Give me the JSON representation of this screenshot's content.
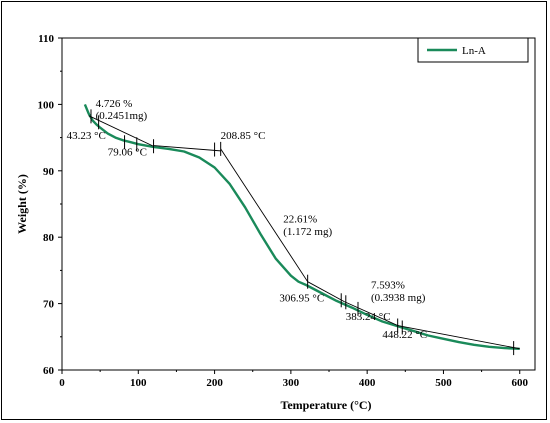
{
  "chart_data": {
    "type": "line",
    "title": "",
    "xlabel": "Temperature (°C)",
    "ylabel": "Weight (%)",
    "xlim": [
      0,
      620
    ],
    "ylim": [
      60,
      110
    ],
    "xticks": [
      0,
      100,
      200,
      300,
      400,
      500,
      600
    ],
    "yticks": [
      60,
      70,
      80,
      90,
      100,
      110
    ],
    "grid": false,
    "legend": {
      "position": "top-right"
    },
    "series": [
      {
        "name": "Ln-A",
        "color": "#1a8a5a",
        "x": [
          30,
          35,
          40,
          45,
          50,
          60,
          70,
          80,
          90,
          100,
          120,
          140,
          160,
          180,
          200,
          220,
          240,
          260,
          280,
          300,
          310,
          320,
          340,
          360,
          380,
          400,
          420,
          440,
          460,
          480,
          500,
          520,
          540,
          560,
          580,
          600
        ],
        "y": [
          100.0,
          98.6,
          97.6,
          97.0,
          96.5,
          95.6,
          95.0,
          94.6,
          94.3,
          94.0,
          93.6,
          93.3,
          92.9,
          92.0,
          90.5,
          88.0,
          84.5,
          80.5,
          76.8,
          74.2,
          73.3,
          72.8,
          71.6,
          70.4,
          69.4,
          68.3,
          67.3,
          66.6,
          65.9,
          65.2,
          64.7,
          64.2,
          63.8,
          63.5,
          63.3,
          63.2
        ]
      }
    ],
    "annotations": [
      {
        "text": "4.726 %",
        "x": 44,
        "y": 99.6
      },
      {
        "text": "(0.2451mg)",
        "x": 44,
        "y": 97.8
      },
      {
        "text": "43.23 °C",
        "x": 6,
        "y": 94.8
      },
      {
        "text": "79.06 °C",
        "x": 60,
        "y": 92.3
      },
      {
        "text": "208.85 °C",
        "x": 208,
        "y": 94.8
      },
      {
        "text": "22.61%",
        "x": 290,
        "y": 82.2
      },
      {
        "text": "(1.172 mg)",
        "x": 290,
        "y": 80.3
      },
      {
        "text": "306.95 °C",
        "x": 285,
        "y": 70.3
      },
      {
        "text": "7.593%",
        "x": 405,
        "y": 72.3
      },
      {
        "text": "(0.3938 mg)",
        "x": 405,
        "y": 70.4
      },
      {
        "text": "383.24 °C",
        "x": 372,
        "y": 67.5
      },
      {
        "text": "448.22 °C",
        "x": 420,
        "y": 64.8
      }
    ],
    "tangent_lines": [
      {
        "x1": 35,
        "y1": 98.3,
        "x2": 120,
        "y2": 93.7
      },
      {
        "x1": 120,
        "y1": 93.8,
        "x2": 208,
        "y2": 93.0
      },
      {
        "x1": 208,
        "y1": 93.3,
        "x2": 322,
        "y2": 73.3
      },
      {
        "x1": 322,
        "y1": 73.3,
        "x2": 370,
        "y2": 70.3
      },
      {
        "x1": 370,
        "y1": 70.3,
        "x2": 440,
        "y2": 66.7
      },
      {
        "x1": 440,
        "y1": 66.7,
        "x2": 600,
        "y2": 63.2
      }
    ],
    "markers": [
      {
        "x": 38,
        "y": 98.2
      },
      {
        "x": 48,
        "y": 97.3
      },
      {
        "x": 82,
        "y": 94.3
      },
      {
        "x": 98,
        "y": 94.0
      },
      {
        "x": 120,
        "y": 93.7
      },
      {
        "x": 200,
        "y": 93.2
      },
      {
        "x": 208,
        "y": 93.3
      },
      {
        "x": 322,
        "y": 73.3
      },
      {
        "x": 366,
        "y": 70.5
      },
      {
        "x": 372,
        "y": 70.2
      },
      {
        "x": 388,
        "y": 69.2
      },
      {
        "x": 440,
        "y": 66.7
      },
      {
        "x": 446,
        "y": 66.4
      },
      {
        "x": 592,
        "y": 63.3
      }
    ]
  }
}
